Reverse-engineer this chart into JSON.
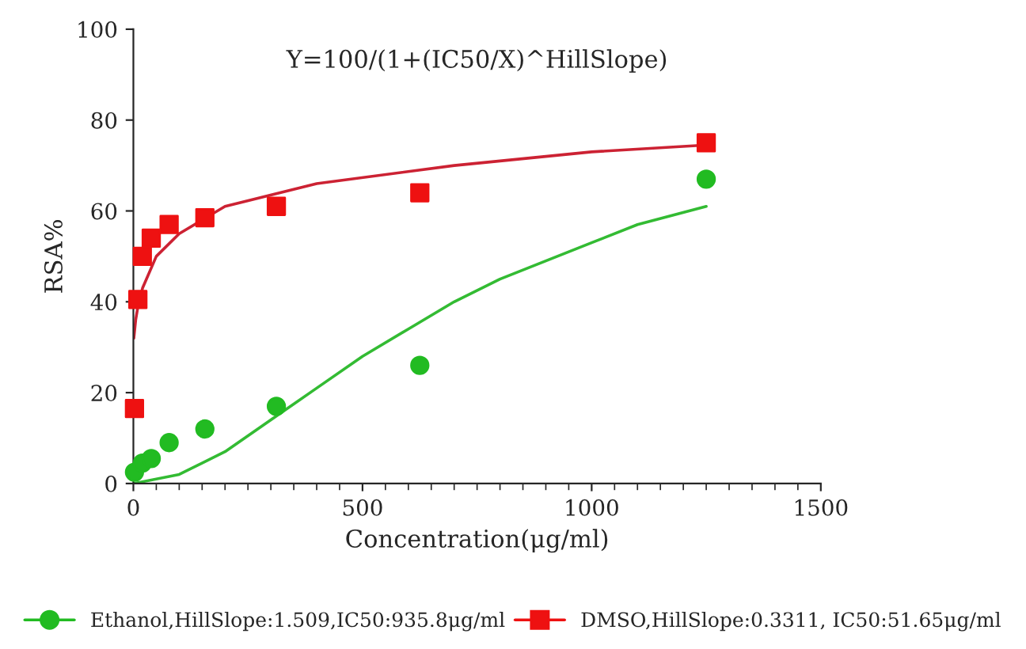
{
  "chart_data": {
    "type": "scatter",
    "title": "Y=100/(1+(IC50/X)^HillSlope)",
    "xlabel": "Concentration(μg/ml)",
    "ylabel": "RSA%",
    "xlim": [
      0,
      1500
    ],
    "xticks": [
      0,
      500,
      1000,
      1500
    ],
    "ylim": [
      0,
      100
    ],
    "yticks": [
      0,
      20,
      40,
      60,
      80,
      100
    ],
    "grid": false,
    "legend": "bottom",
    "series": [
      {
        "name": "Ethanol,HillSlope:1.509,IC50:935.8μg/ml",
        "color": "#22bb22",
        "marker": "circle",
        "x": [
          2.4,
          19.5,
          39,
          78,
          156,
          312,
          625,
          1250
        ],
        "values": [
          2.5,
          4.5,
          5.5,
          9,
          12,
          17,
          26,
          67
        ]
      },
      {
        "name": "DMSO,HillSlope:0.3311, IC50:51.65μg/ml",
        "color": "#ee1111",
        "marker": "square",
        "x": [
          2.4,
          9.8,
          19.5,
          39,
          78,
          156,
          312,
          625,
          1250
        ],
        "values": [
          16.5,
          40.5,
          50,
          54,
          57,
          58.5,
          61,
          64,
          75
        ]
      },
      {
        "type": "line",
        "color": "#33bb33",
        "marker": "none",
        "x": [
          0,
          100,
          200,
          300,
          400,
          500,
          600,
          700,
          800,
          900,
          1000,
          1100,
          1250
        ],
        "values": [
          0,
          2,
          7,
          14,
          21,
          28,
          34,
          40,
          45,
          49,
          53,
          57,
          61
        ]
      },
      {
        "type": "line",
        "color": "#cc2233",
        "marker": "none",
        "x": [
          1,
          5,
          10,
          20,
          50,
          100,
          200,
          400,
          700,
          1000,
          1250
        ],
        "values": [
          32,
          36,
          39,
          43,
          50,
          55,
          61,
          66,
          70,
          73,
          74.5
        ]
      }
    ]
  }
}
